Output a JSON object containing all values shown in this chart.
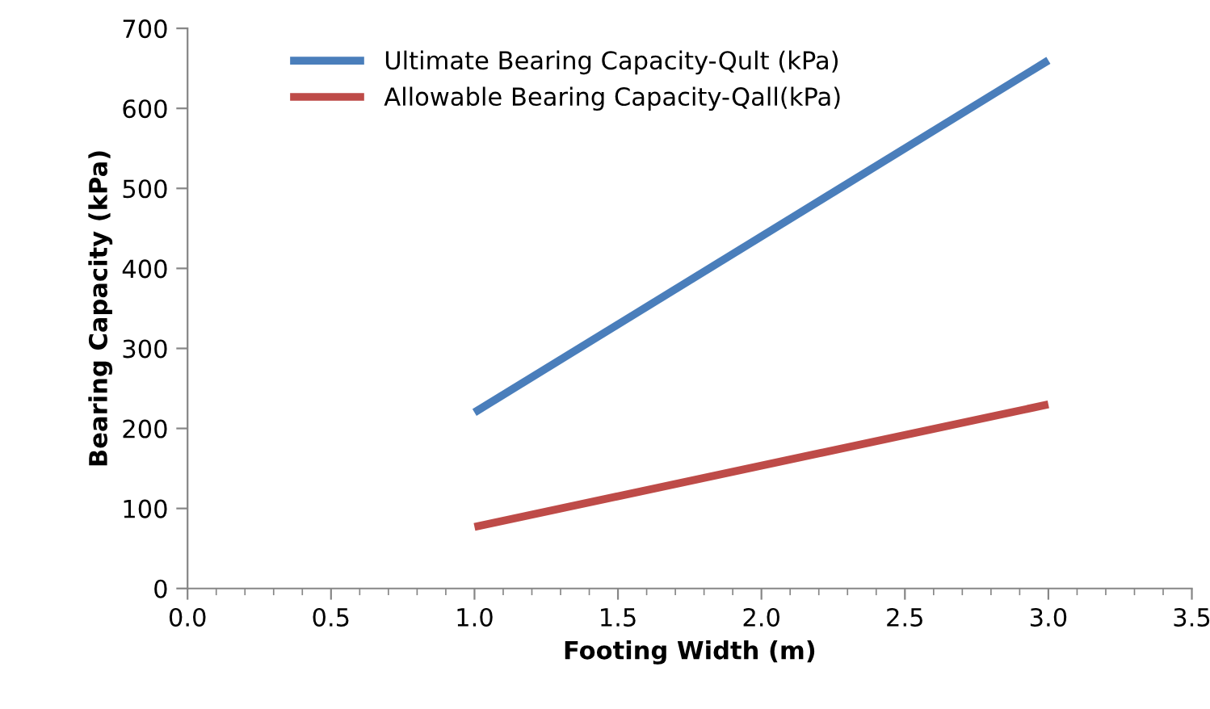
{
  "chart_data": {
    "type": "line",
    "xlabel": "Footing Width (m)",
    "ylabel": "Bearing Capacity (kPa)",
    "series": [
      {
        "name": "Ultimate Bearing Capacity-Qult (kPa)",
        "color": "#4a7ebb",
        "values": [
          220,
          660
        ]
      },
      {
        "name": "Allowable Bearing Capacity-Qall(kPa)",
        "color": "#be4b48",
        "values": [
          77,
          230
        ]
      }
    ],
    "x": [
      1,
      3
    ],
    "xlim": [
      0,
      3.5
    ],
    "xticks": [
      {
        "value": 0,
        "label": "0.0"
      },
      {
        "value": 0.5,
        "label": "0.5"
      },
      {
        "value": 1,
        "label": "1.0"
      },
      {
        "value": 1.5,
        "label": "1.5"
      },
      {
        "value": 2,
        "label": "2.0"
      },
      {
        "value": 2.5,
        "label": "2.5"
      },
      {
        "value": 3,
        "label": "3.0"
      },
      {
        "value": 3.5,
        "label": "3.5"
      }
    ],
    "ylim": [
      0,
      700
    ],
    "yticks": [
      0,
      100,
      200,
      300,
      400,
      500,
      600,
      700
    ],
    "grid": false,
    "legend": "top left",
    "marker": "none",
    "line_style": "solid"
  }
}
